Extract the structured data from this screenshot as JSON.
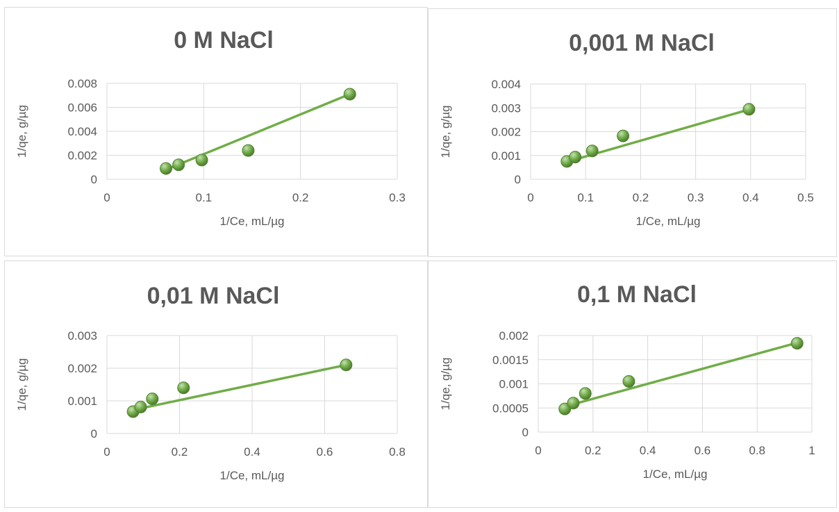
{
  "style": {
    "line_color": "#70AD47",
    "marker_color": "#70AD47",
    "marker_highlight": "#C5E0B4",
    "grid_color": "#D9D9D9",
    "text_color": "#595959"
  },
  "chart_data": [
    {
      "type": "scatter",
      "title": "0 M NaCl",
      "xlabel": "1/Ce, mL/µg",
      "ylabel": "1/qe, g/µg",
      "xlim": [
        0,
        0.3
      ],
      "ylim": [
        0,
        0.008
      ],
      "xticks": [
        "0",
        "0.1",
        "0.2",
        "0.3"
      ],
      "yticks": [
        "0",
        "0.002",
        "0.004",
        "0.006",
        "0.008"
      ],
      "grid": "on",
      "legend": "none",
      "points": {
        "x": [
          0.061,
          0.074,
          0.098,
          0.146,
          0.251
        ],
        "y": [
          0.0009,
          0.0012,
          0.0016,
          0.0024,
          0.0071
        ]
      },
      "trendline": {
        "x": [
          0.061,
          0.251
        ],
        "y": [
          0.0008,
          0.0071
        ]
      }
    },
    {
      "type": "scatter",
      "title": "0,001 M NaCl",
      "xlabel": "1/Ce, mL/µg",
      "ylabel": "1/qe, g/µg",
      "xlim": [
        0,
        0.5
      ],
      "ylim": [
        0,
        0.004
      ],
      "xticks": [
        "0",
        "0.1",
        "0.2",
        "0.3",
        "0.4",
        "0.5"
      ],
      "yticks": [
        "0",
        "0.001",
        "0.002",
        "0.003",
        "0.004"
      ],
      "grid": "on",
      "legend": "none",
      "points": {
        "x": [
          0.066,
          0.081,
          0.112,
          0.168,
          0.397
        ],
        "y": [
          0.00075,
          0.00093,
          0.00119,
          0.00182,
          0.00294
        ]
      },
      "trendline": {
        "x": [
          0.066,
          0.397
        ],
        "y": [
          0.00073,
          0.00293
        ]
      }
    },
    {
      "type": "scatter",
      "title": "0,01 M NaCl",
      "xlabel": "1/Ce, mL/µg",
      "ylabel": "1/qe, g/µg",
      "xlim": [
        0,
        0.8
      ],
      "ylim": [
        0,
        0.003
      ],
      "xticks": [
        "0",
        "0.2",
        "0.4",
        "0.6",
        "0.8"
      ],
      "yticks": [
        "0",
        "0.001",
        "0.002",
        "0.003"
      ],
      "grid": "on",
      "legend": "none",
      "points": {
        "x": [
          0.072,
          0.093,
          0.125,
          0.211,
          0.659
        ],
        "y": [
          0.00067,
          0.00081,
          0.00106,
          0.0014,
          0.0021
        ]
      },
      "trendline": {
        "x": [
          0.072,
          0.659
        ],
        "y": [
          0.00072,
          0.0021
        ]
      }
    },
    {
      "type": "scatter",
      "title": "0,1 M NaCl",
      "xlabel": "1/Ce, mL/µg",
      "ylabel": "1/qe, g/µg",
      "xlim": [
        0,
        1
      ],
      "ylim": [
        0,
        0.002
      ],
      "xticks": [
        "0",
        "0.2",
        "0.4",
        "0.6",
        "0.8",
        "1"
      ],
      "yticks": [
        "0",
        "0.0005",
        "0.001",
        "0.0015",
        "0.002"
      ],
      "grid": "on",
      "legend": "none",
      "points": {
        "x": [
          0.097,
          0.128,
          0.172,
          0.331,
          0.946
        ],
        "y": [
          0.00048,
          0.0006,
          0.0008,
          0.00105,
          0.00184
        ]
      },
      "trendline": {
        "x": [
          0.097,
          0.946
        ],
        "y": [
          0.00053,
          0.00185
        ]
      }
    }
  ]
}
